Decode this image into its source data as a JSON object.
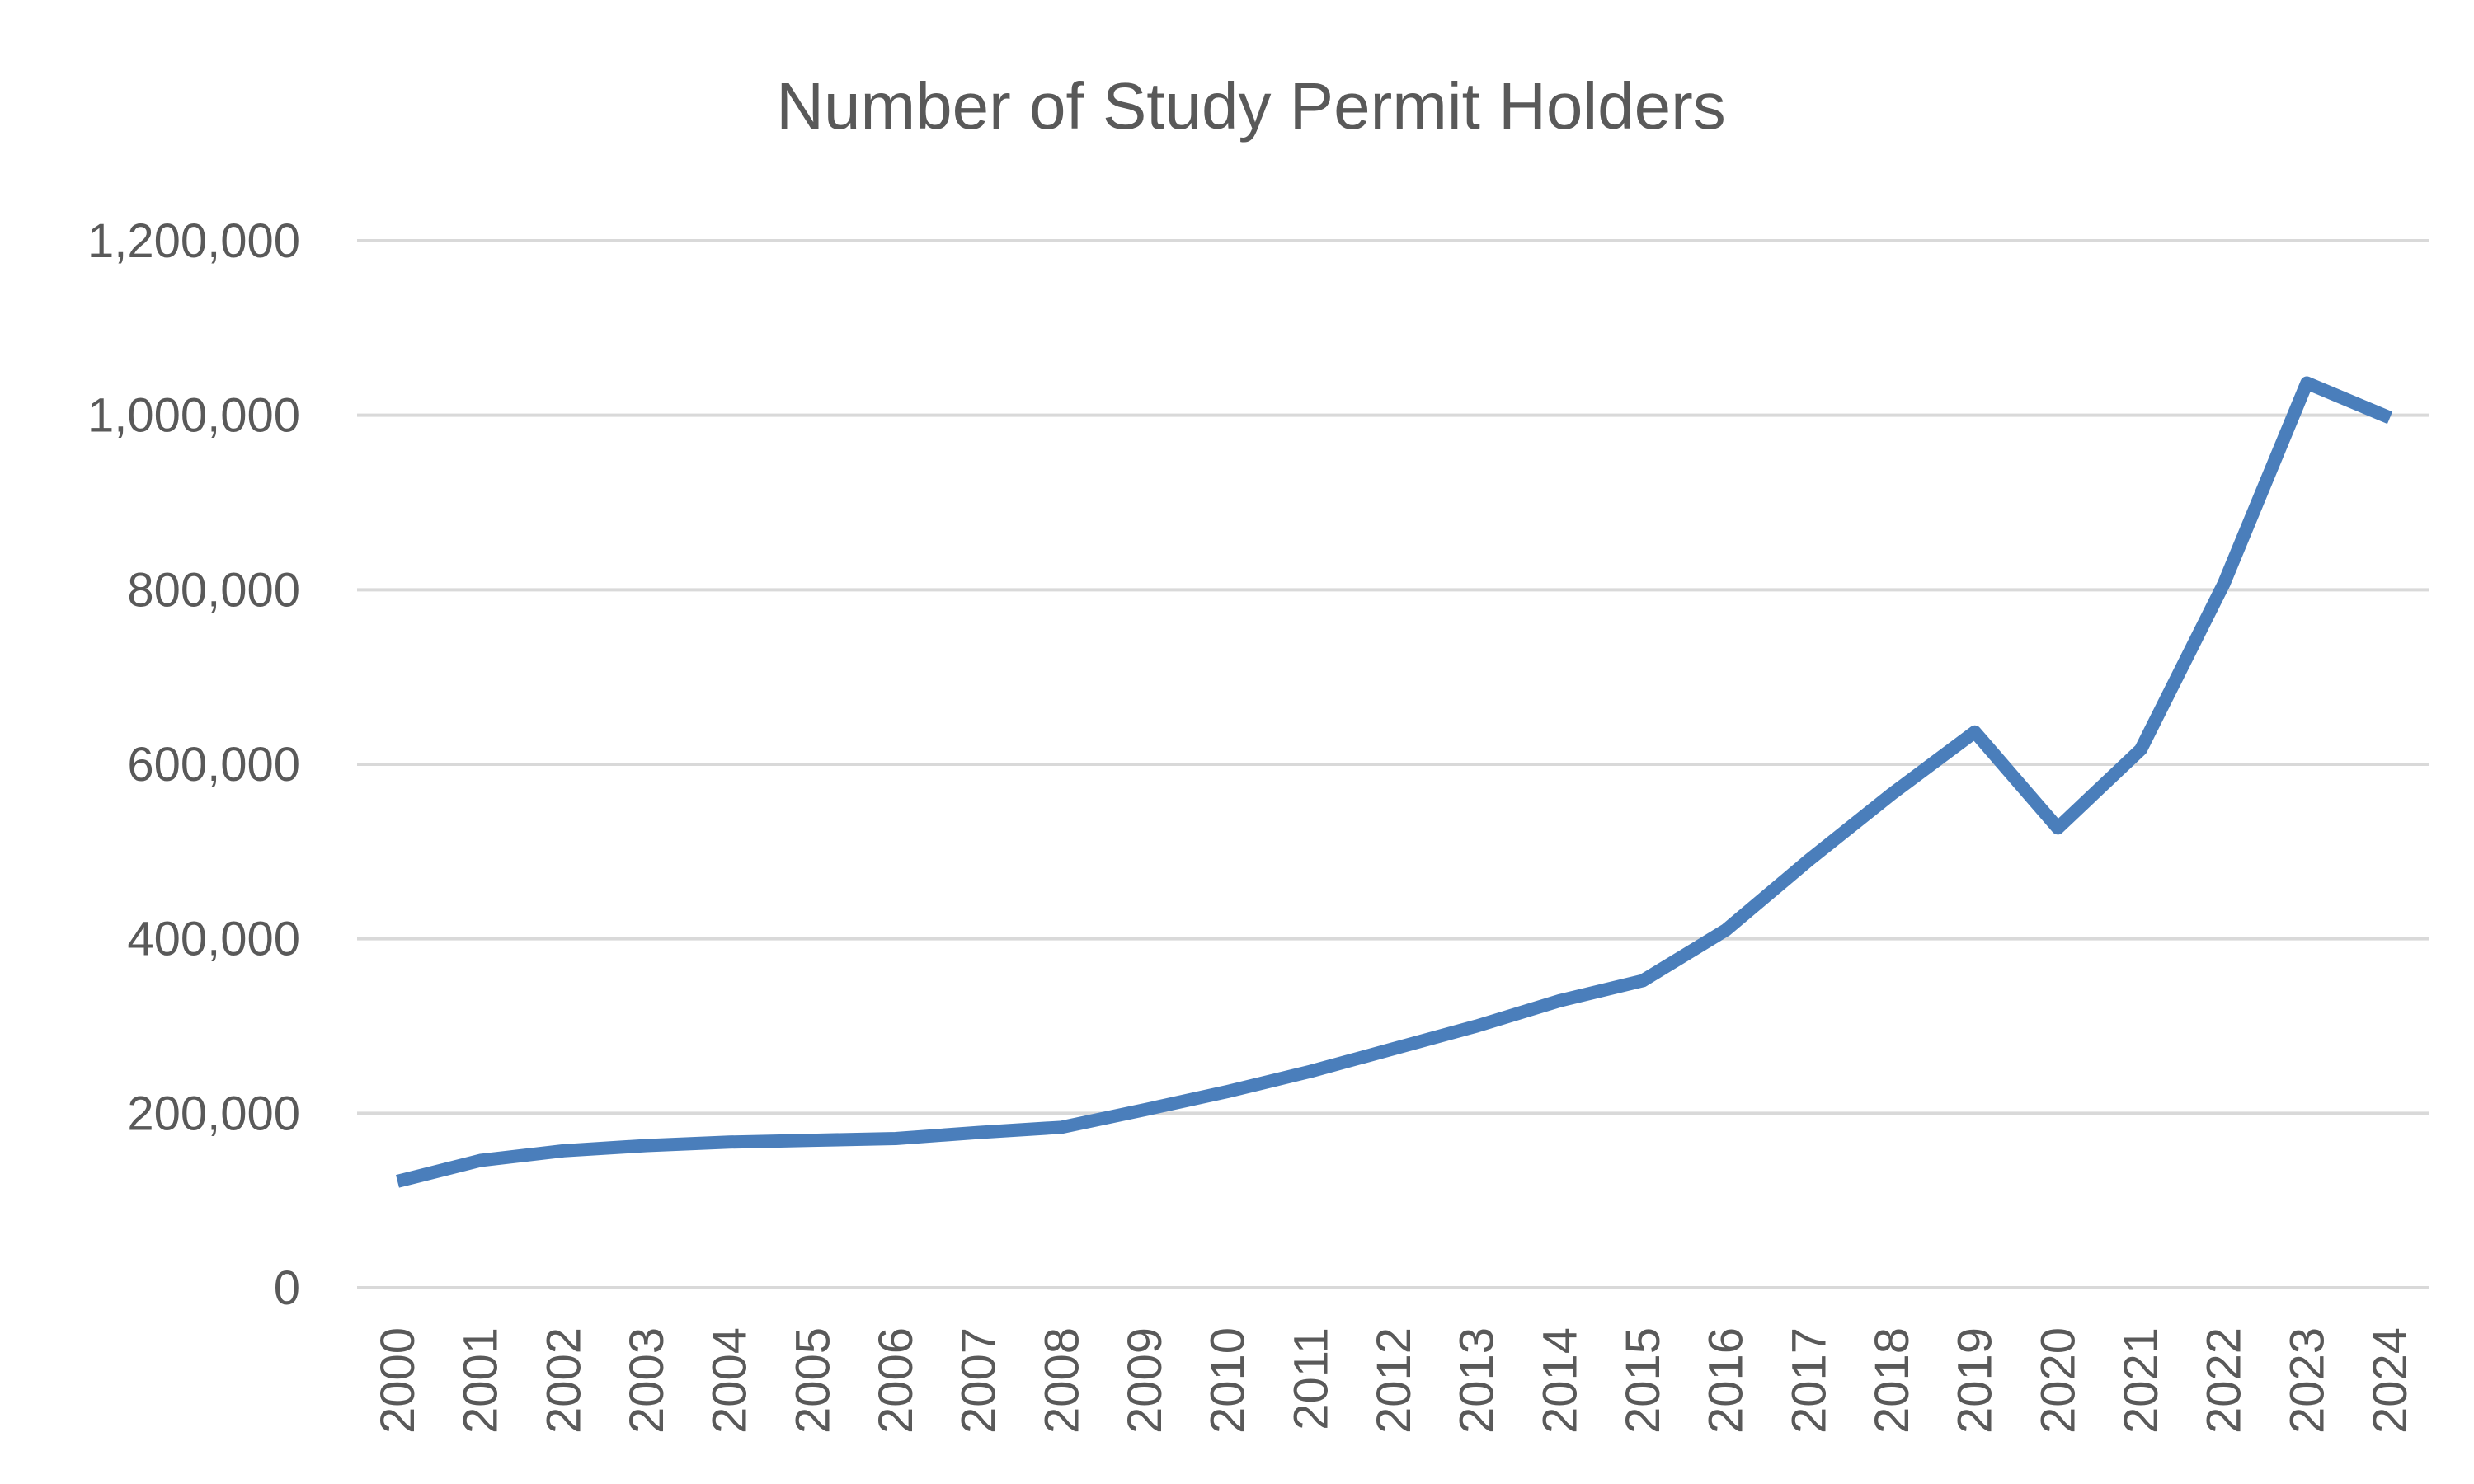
{
  "chart_data": {
    "type": "line",
    "title": "Number of Study Permit Holders",
    "xlabel": "",
    "ylabel": "",
    "x": [
      "2000",
      "2001",
      "2002",
      "2003",
      "2004",
      "2005",
      "2006",
      "2007",
      "2008",
      "2009",
      "2010",
      "2011",
      "2012",
      "2013",
      "2014",
      "2015",
      "2016",
      "2017",
      "2018",
      "2019",
      "2020",
      "2021",
      "2022",
      "2023",
      "2024"
    ],
    "series": [
      {
        "values": [
          122000,
          146000,
          157000,
          163000,
          167000,
          169000,
          171000,
          178000,
          184000,
          204000,
          225000,
          248000,
          274000,
          300000,
          329000,
          352000,
          410000,
          490000,
          566000,
          637000,
          527000,
          617000,
          807000,
          1037000,
          997000
        ]
      }
    ],
    "ylim": [
      0,
      1200000
    ],
    "y_ticks": [
      0,
      200000,
      400000,
      600000,
      800000,
      1000000,
      1200000
    ],
    "y_tick_labels": [
      "0",
      "200,000",
      "400,000",
      "600,000",
      "800,000",
      "1,000,000",
      "1,200,000"
    ],
    "grid": true,
    "legend": "none",
    "colors": {
      "series": "#4a7ebb",
      "gridline": "#d9d9d9",
      "text": "#595959"
    }
  }
}
